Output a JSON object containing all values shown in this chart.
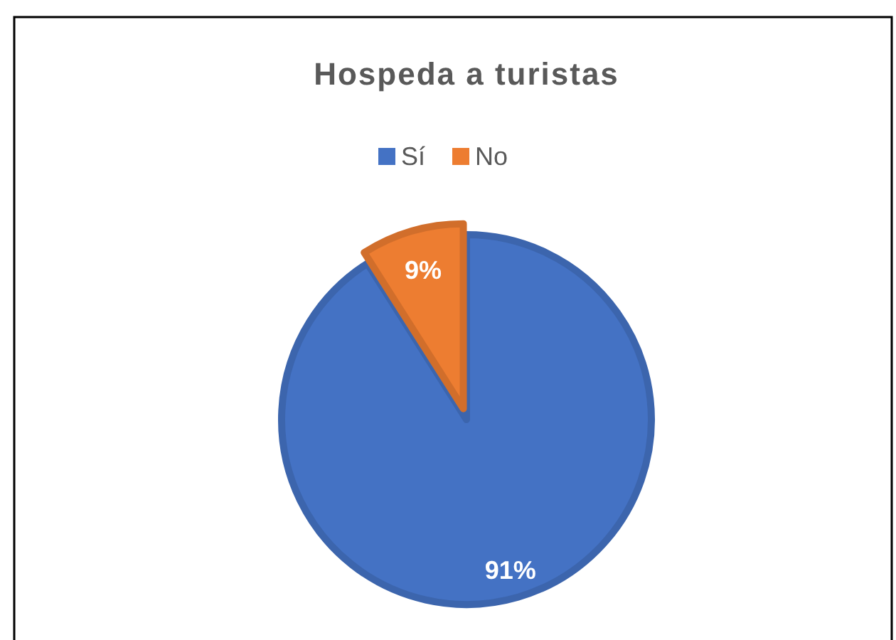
{
  "chart_data": {
    "type": "pie",
    "title": "Hospeda a turistas",
    "categories": [
      "Sí",
      "No"
    ],
    "values": [
      91,
      9
    ],
    "colors": [
      "#4472c4",
      "#ed7d31"
    ],
    "value_labels": [
      "91%",
      "9%"
    ],
    "legend": "top"
  }
}
